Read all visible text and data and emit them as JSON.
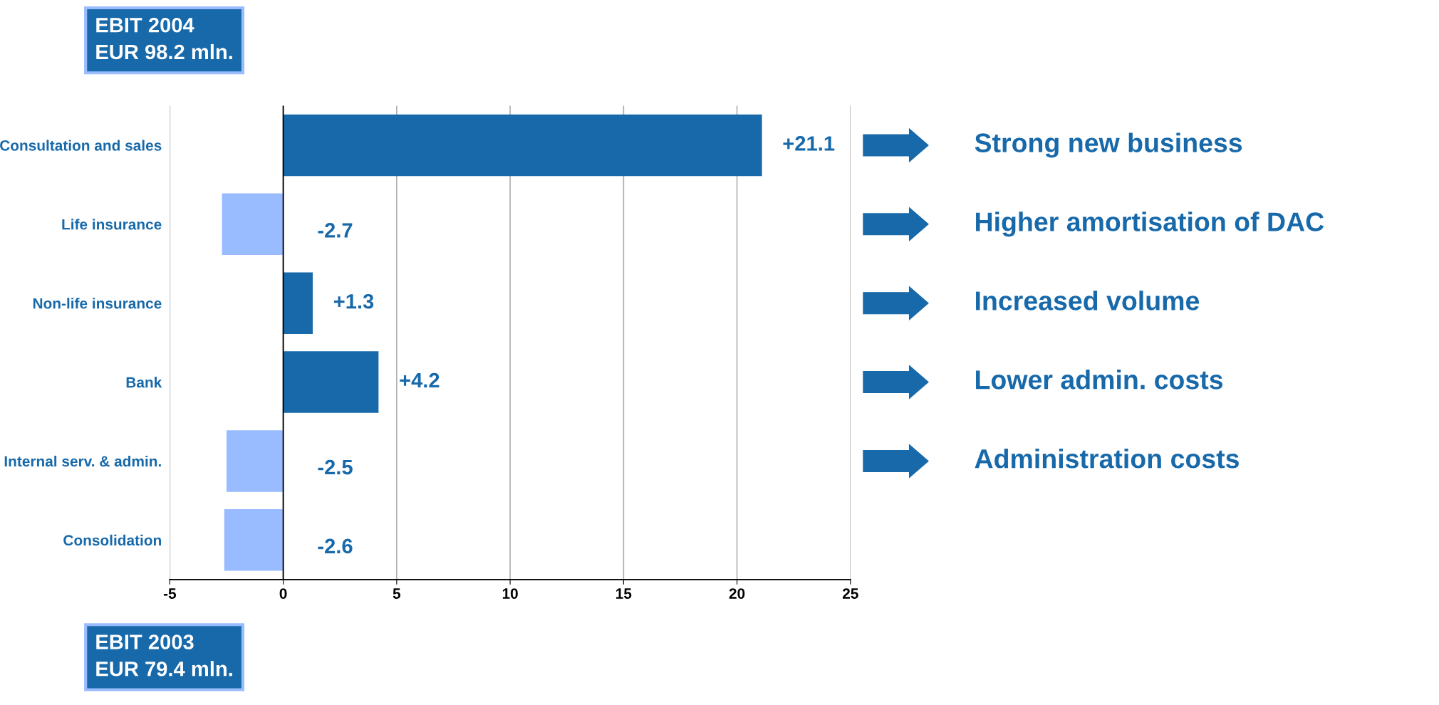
{
  "chart_data": {
    "type": "bar",
    "orientation": "horizontal",
    "categories": [
      "Consultation and sales",
      "Life insurance",
      "Non-life insurance",
      "Bank",
      "Internal serv. & admin.",
      "Consolidation"
    ],
    "values": [
      21.1,
      -2.7,
      1.3,
      4.2,
      -2.5,
      -2.6
    ],
    "colors": [
      "#1769aa",
      "#99bbff",
      "#1769aa",
      "#1769aa",
      "#99bbff",
      "#99bbff"
    ],
    "value_labels": [
      "+21.1",
      "-2.7",
      "+1.3",
      "+4.2",
      "-2.5",
      "-2.6"
    ],
    "xlim": [
      -5,
      25
    ],
    "xticks": [
      -5,
      0,
      5,
      10,
      15,
      20,
      25
    ],
    "grid": "x",
    "annotations": [
      "EBIT 2004\nEUR 98.2 mln.",
      "EBIT 2003\nEUR 79.4 mln.",
      "Strong new business",
      "Higher amortisation of DAC",
      "Increased volume",
      "Lower admin. costs",
      "Administration costs"
    ]
  }
}
